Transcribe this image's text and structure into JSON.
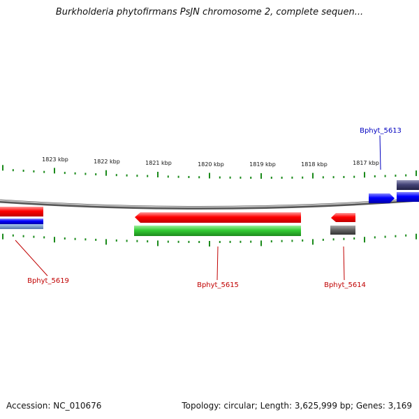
{
  "title": "Burkholderia phytofirmans PsJN chromosome 2, complete sequen...",
  "footer": {
    "accession": "Accession: NC_010676",
    "summary": "Topology: circular; Length: 3,625,999 bp; Genes: 3,169"
  },
  "ruler": {
    "labels": [
      "1823 kbp",
      "1822 kbp",
      "1821 kbp",
      "1820 kbp",
      "1819 kbp",
      "1818 kbp",
      "1817 kbp"
    ]
  },
  "genes": [
    {
      "name": "Bphyt_5613",
      "color": "#0000c0"
    },
    {
      "name": "Bphyt_5614",
      "color": "#c00000"
    },
    {
      "name": "Bphyt_5615",
      "color": "#c00000"
    },
    {
      "name": "Bphyt_5619",
      "color": "#c00000"
    }
  ],
  "colors": {
    "cds_forward": "#ff0000",
    "cds_reverse": "#0000ff",
    "gene_green": "#33cc33",
    "misc_grey": "#555555",
    "dark_slate": "#333366",
    "tick_green": "#1a8a1a",
    "backbone": "#888888"
  }
}
